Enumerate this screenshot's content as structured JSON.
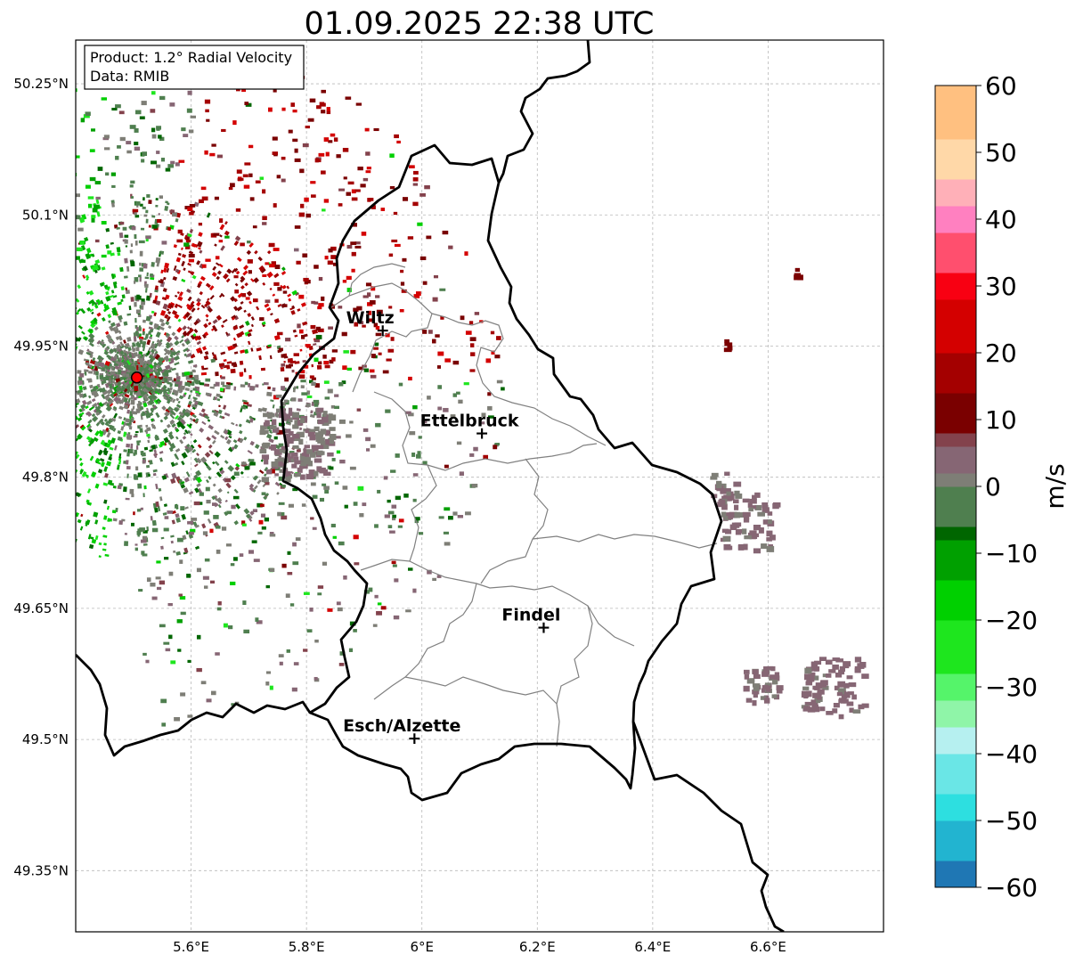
{
  "title": "01.09.2025 22:38 UTC",
  "info": {
    "product_line": "Product: 1.2° Radial Velocity",
    "data_line": "Data: RMIB"
  },
  "map": {
    "lon_range": [
      5.4,
      6.8
    ],
    "lat_range": [
      49.28,
      50.3
    ],
    "x_ticks": [
      {
        "v": 5.6,
        "label": "5.6°E"
      },
      {
        "v": 5.8,
        "label": "5.8°E"
      },
      {
        "v": 6.0,
        "label": "6°E"
      },
      {
        "v": 6.2,
        "label": "6.2°E"
      },
      {
        "v": 6.4,
        "label": "6.4°E"
      },
      {
        "v": 6.6,
        "label": "6.6°E"
      }
    ],
    "y_ticks": [
      {
        "v": 50.25,
        "label": "50.25°N"
      },
      {
        "v": 50.1,
        "label": "50.1°N"
      },
      {
        "v": 49.95,
        "label": "49.95°N"
      },
      {
        "v": 49.8,
        "label": "49.8°N"
      },
      {
        "v": 49.65,
        "label": "49.65°N"
      },
      {
        "v": 49.5,
        "label": "49.5°N"
      },
      {
        "v": 49.35,
        "label": "49.35°N"
      }
    ],
    "grid": true,
    "radar_site": {
      "lon": 5.506,
      "lat": 49.914
    },
    "cities": [
      {
        "name": "Wiltz",
        "lon": 5.932,
        "lat": 49.966
      },
      {
        "name": "Ettelbruck",
        "lon": 6.104,
        "lat": 49.848
      },
      {
        "name": "Findel",
        "lon": 6.211,
        "lat": 49.626
      },
      {
        "name": "Esch/Alzette",
        "lon": 5.987,
        "lat": 49.499
      }
    ]
  },
  "colorbar": {
    "label": "m/s",
    "min": -60,
    "max": 60,
    "ticks": [
      {
        "v": 60,
        "label": "60"
      },
      {
        "v": 50,
        "label": "50"
      },
      {
        "v": 40,
        "label": "40"
      },
      {
        "v": 30,
        "label": "30"
      },
      {
        "v": 20,
        "label": "20"
      },
      {
        "v": 10,
        "label": "10"
      },
      {
        "v": 0,
        "label": "0"
      },
      {
        "v": -10,
        "label": "−10"
      },
      {
        "v": -20,
        "label": "−20"
      },
      {
        "v": -30,
        "label": "−30"
      },
      {
        "v": -40,
        "label": "−40"
      },
      {
        "v": -50,
        "label": "−50"
      },
      {
        "v": -60,
        "label": "−60"
      }
    ],
    "stops": [
      {
        "v": -60,
        "c": "#1f77b4"
      },
      {
        "v": -55,
        "c": "#22b4d0"
      },
      {
        "v": -50,
        "c": "#2ddfe0"
      },
      {
        "v": -45,
        "c": "#6ae6e6"
      },
      {
        "v": -40,
        "c": "#b6f0f0"
      },
      {
        "v": -36,
        "c": "#8ff5a8"
      },
      {
        "v": -32,
        "c": "#55f46a"
      },
      {
        "v": -28,
        "c": "#1ee61e"
      },
      {
        "v": -20,
        "c": "#00d000"
      },
      {
        "v": -14,
        "c": "#00a000"
      },
      {
        "v": -8,
        "c": "#006600"
      },
      {
        "v": -5,
        "c": "#4f7f4f"
      },
      {
        "v": 0,
        "c": "#7e7e76"
      },
      {
        "v": 3,
        "c": "#866674"
      },
      {
        "v": 6,
        "c": "#83424c"
      },
      {
        "v": 8,
        "c": "#7a0000"
      },
      {
        "v": 14,
        "c": "#a40000"
      },
      {
        "v": 20,
        "c": "#d40000"
      },
      {
        "v": 28,
        "c": "#f80012"
      },
      {
        "v": 32,
        "c": "#ff4f6e"
      },
      {
        "v": 38,
        "c": "#ff80c0"
      },
      {
        "v": 43,
        "c": "#ffb0b8"
      },
      {
        "v": 47,
        "c": "#ffd8a8"
      },
      {
        "v": 52,
        "c": "#ffc080"
      },
      {
        "v": 60,
        "c": "#ff9850"
      }
    ]
  },
  "colors": {
    "approaching": "#00cc00",
    "receding": "#7a0000",
    "near_zero": "#7e7a74",
    "radar_marker": "#ff0000",
    "country_border": "#000000",
    "canton_border": "#808080"
  }
}
